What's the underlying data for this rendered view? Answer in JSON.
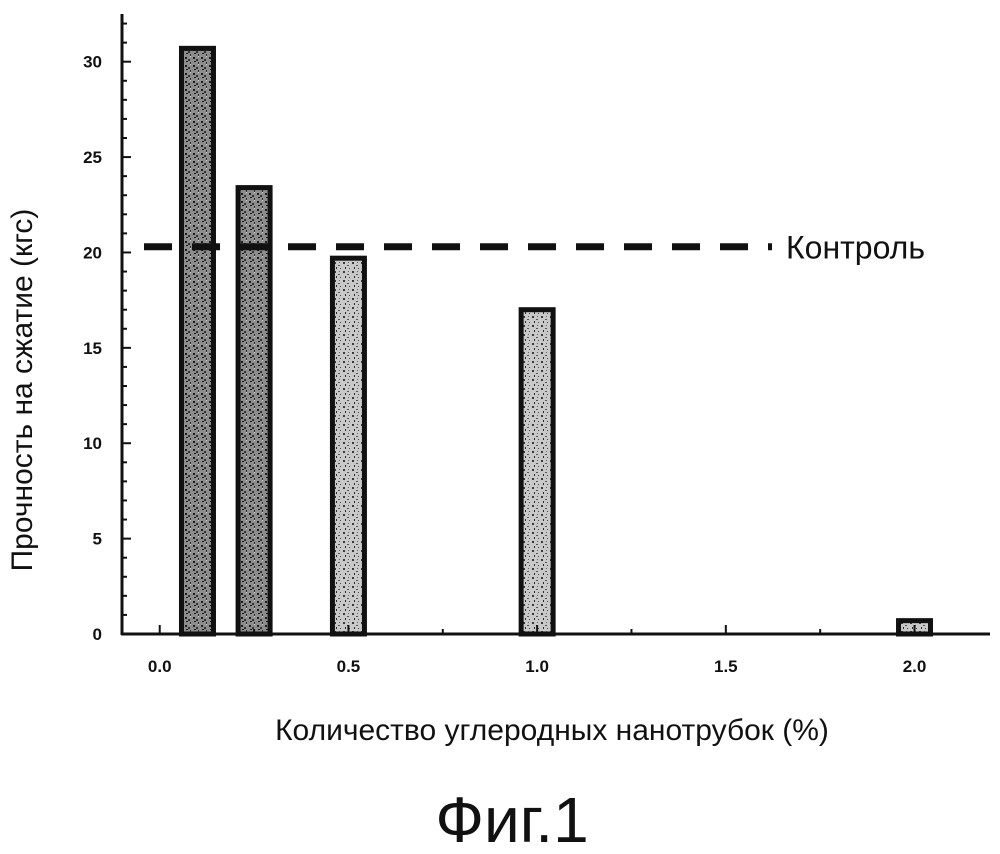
{
  "chart_data": {
    "type": "bar",
    "x": [
      0.1,
      0.25,
      0.5,
      1.0,
      2.0
    ],
    "values": [
      30.7,
      23.4,
      19.7,
      17.0,
      0.7
    ],
    "xlabel": "Количество углеродных нанотрубок (%)",
    "ylabel": "Прочность на сжатие (кгс)",
    "xlim": [
      -0.1,
      2.2
    ],
    "ylim": [
      0,
      32.5
    ],
    "xticks": [
      "0.0",
      "0.5",
      "1.0",
      "1.5",
      "2.0"
    ],
    "xtick_values": [
      0.0,
      0.5,
      1.0,
      1.5,
      2.0
    ],
    "yticks": [
      "0",
      "5",
      "10",
      "15",
      "20",
      "25",
      "30"
    ],
    "ytick_values": [
      0,
      5,
      10,
      15,
      20,
      25,
      30
    ],
    "reference_line": {
      "label": "Контроль",
      "value": 20.3,
      "style": "dashed"
    },
    "bar_fill": "#b4b4b4",
    "bar_stroke": "#111111",
    "grid": false
  },
  "figure_caption": "Фиг.1"
}
